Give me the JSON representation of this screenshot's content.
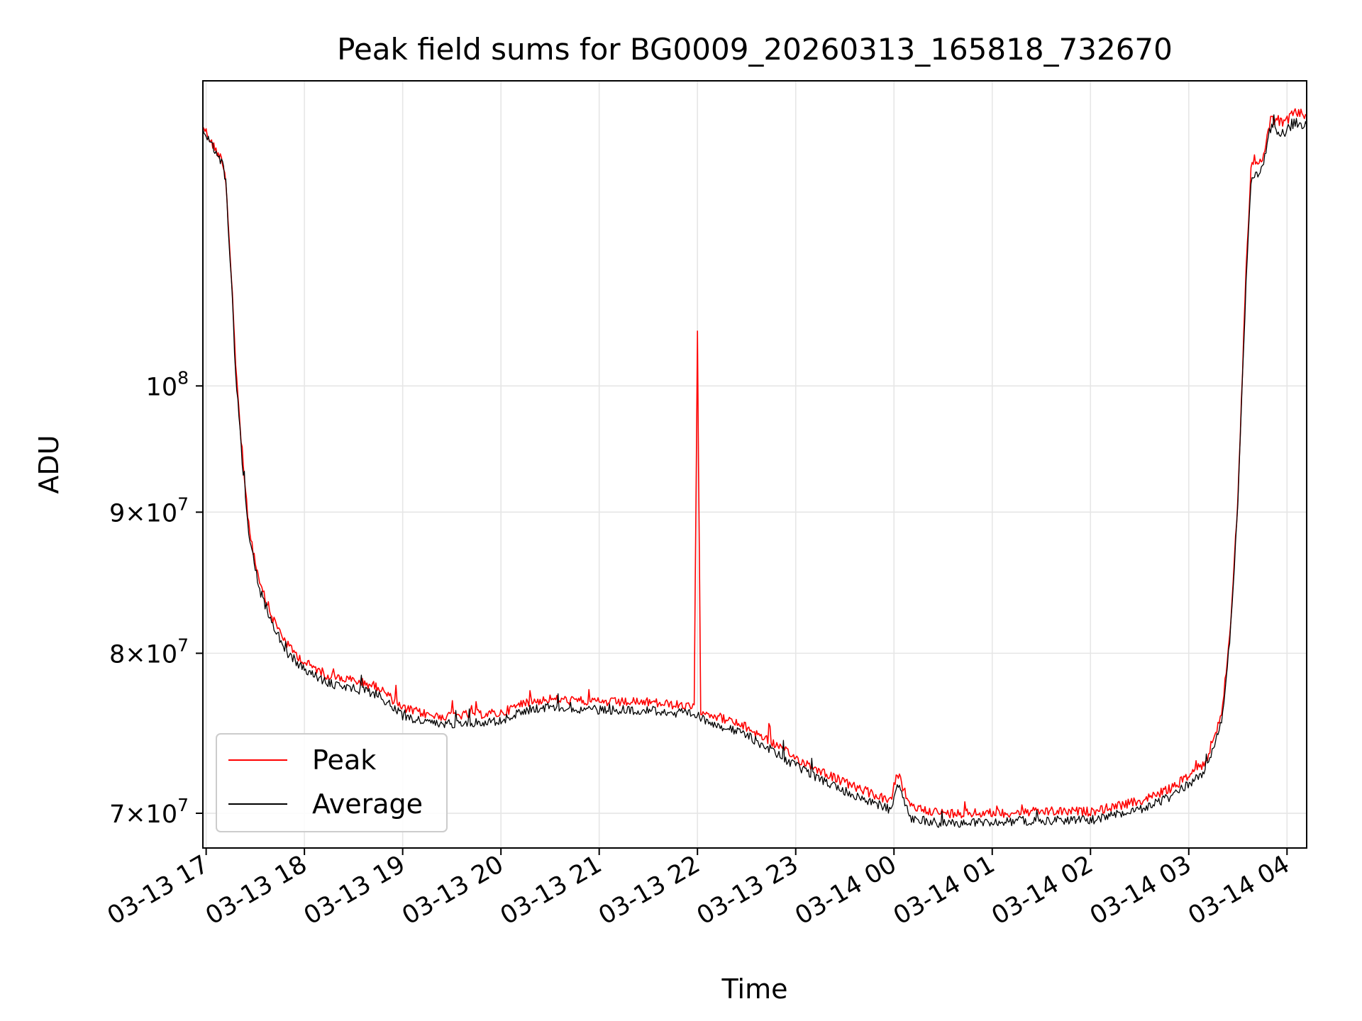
{
  "chart_data": {
    "type": "line",
    "title": "Peak field sums for BG0009_20260313_165818_732670",
    "xlabel": "Time",
    "ylabel": "ADU",
    "x_scale": "time",
    "y_scale": "log",
    "xlim": [
      "2026-03-13 16:58",
      "2026-03-14 04:12"
    ],
    "ylim": [
      68000000,
      129000000
    ],
    "x_ticks": [
      {
        "value": "2026-03-13 17:00",
        "label": "03-13 17"
      },
      {
        "value": "2026-03-13 18:00",
        "label": "03-13 18"
      },
      {
        "value": "2026-03-13 19:00",
        "label": "03-13 19"
      },
      {
        "value": "2026-03-13 20:00",
        "label": "03-13 20"
      },
      {
        "value": "2026-03-13 21:00",
        "label": "03-13 21"
      },
      {
        "value": "2026-03-13 22:00",
        "label": "03-13 22"
      },
      {
        "value": "2026-03-13 23:00",
        "label": "03-13 23"
      },
      {
        "value": "2026-03-14 00:00",
        "label": "03-14 00"
      },
      {
        "value": "2026-03-14 01:00",
        "label": "03-14 01"
      },
      {
        "value": "2026-03-14 02:00",
        "label": "03-14 02"
      },
      {
        "value": "2026-03-14 03:00",
        "label": "03-14 03"
      },
      {
        "value": "2026-03-14 04:00",
        "label": "03-14 04"
      }
    ],
    "y_ticks": [
      {
        "value": 70000000,
        "mant": "7",
        "exp": "7"
      },
      {
        "value": 80000000,
        "mant": "8",
        "exp": "7"
      },
      {
        "value": 90000000,
        "mant": "9",
        "exp": "7"
      },
      {
        "value": 100000000,
        "mant": "",
        "exp": "8"
      }
    ],
    "grid": true,
    "legend_position": "lower-left",
    "series": [
      {
        "name": "Peak",
        "color": "#ff0000",
        "points": [
          [
            "2026-03-13 16:58",
            124300000
          ],
          [
            "2026-03-13 17:04",
            122300000
          ],
          [
            "2026-03-13 17:10",
            120700000
          ],
          [
            "2026-03-13 17:12",
            118800000
          ],
          [
            "2026-03-13 17:16",
            108000000
          ],
          [
            "2026-03-13 17:18",
            101500000
          ],
          [
            "2026-03-13 17:22",
            94500000
          ],
          [
            "2026-03-13 17:26",
            89000000
          ],
          [
            "2026-03-13 17:32",
            85000000
          ],
          [
            "2026-03-13 17:40",
            82500000
          ],
          [
            "2026-03-13 17:50",
            80500000
          ],
          [
            "2026-03-13 18:00",
            79400000
          ],
          [
            "2026-03-13 18:15",
            78500000
          ],
          [
            "2026-03-13 18:30",
            78200000
          ],
          [
            "2026-03-13 18:45",
            77800000
          ],
          [
            "2026-03-13 19:00",
            76400000
          ],
          [
            "2026-03-13 19:20",
            75900000
          ],
          [
            "2026-03-13 19:40",
            76000000
          ],
          [
            "2026-03-13 20:00",
            76100000
          ],
          [
            "2026-03-13 20:15",
            76800000
          ],
          [
            "2026-03-13 20:30",
            77000000
          ],
          [
            "2026-03-13 21:00",
            76800000
          ],
          [
            "2026-03-13 21:30",
            76800000
          ],
          [
            "2026-03-13 21:58",
            76500000
          ],
          [
            "2026-03-13 22:00",
            104300000
          ],
          [
            "2026-03-13 22:02",
            76300000
          ],
          [
            "2026-03-13 22:30",
            75200000
          ],
          [
            "2026-03-13 22:45",
            74300000
          ],
          [
            "2026-03-13 23:00",
            73300000
          ],
          [
            "2026-03-13 23:30",
            71800000
          ],
          [
            "2026-03-13 23:58",
            70700000
          ],
          [
            "2026-03-14 00:02",
            72400000
          ],
          [
            "2026-03-14 00:10",
            70400000
          ],
          [
            "2026-03-14 00:30",
            70000000
          ],
          [
            "2026-03-14 01:00",
            70000000
          ],
          [
            "2026-03-14 01:30",
            70100000
          ],
          [
            "2026-03-14 02:00",
            70100000
          ],
          [
            "2026-03-14 02:30",
            70700000
          ],
          [
            "2026-03-14 02:50",
            71500000
          ],
          [
            "2026-03-14 03:10",
            73000000
          ],
          [
            "2026-03-14 03:20",
            76000000
          ],
          [
            "2026-03-14 03:25",
            81000000
          ],
          [
            "2026-03-14 03:30",
            91000000
          ],
          [
            "2026-03-14 03:35",
            110000000
          ],
          [
            "2026-03-14 03:38",
            120000000
          ],
          [
            "2026-03-14 03:45",
            120600000
          ],
          [
            "2026-03-14 03:50",
            125000000
          ],
          [
            "2026-03-14 03:58",
            124500000
          ],
          [
            "2026-03-14 04:05",
            125700000
          ],
          [
            "2026-03-14 04:12",
            125300000
          ]
        ]
      },
      {
        "name": "Average",
        "color": "#000000",
        "points": [
          [
            "2026-03-13 16:58",
            124000000
          ],
          [
            "2026-03-13 17:04",
            122000000
          ],
          [
            "2026-03-13 17:10",
            120400000
          ],
          [
            "2026-03-13 17:12",
            118500000
          ],
          [
            "2026-03-13 17:16",
            107500000
          ],
          [
            "2026-03-13 17:18",
            101000000
          ],
          [
            "2026-03-13 17:22",
            94000000
          ],
          [
            "2026-03-13 17:26",
            88600000
          ],
          [
            "2026-03-13 17:32",
            84600000
          ],
          [
            "2026-03-13 17:40",
            82000000
          ],
          [
            "2026-03-13 17:50",
            80000000
          ],
          [
            "2026-03-13 18:00",
            78900000
          ],
          [
            "2026-03-13 18:15",
            78000000
          ],
          [
            "2026-03-13 18:30",
            77700000
          ],
          [
            "2026-03-13 18:45",
            77300000
          ],
          [
            "2026-03-13 19:00",
            75900000
          ],
          [
            "2026-03-13 19:20",
            75400000
          ],
          [
            "2026-03-13 19:40",
            75500000
          ],
          [
            "2026-03-13 20:00",
            75600000
          ],
          [
            "2026-03-13 20:15",
            76300000
          ],
          [
            "2026-03-13 20:30",
            76500000
          ],
          [
            "2026-03-13 21:00",
            76300000
          ],
          [
            "2026-03-13 21:30",
            76300000
          ],
          [
            "2026-03-13 21:58",
            76000000
          ],
          [
            "2026-03-13 22:00",
            75900000
          ],
          [
            "2026-03-13 22:02",
            75800000
          ],
          [
            "2026-03-13 22:30",
            74700000
          ],
          [
            "2026-03-13 22:45",
            73800000
          ],
          [
            "2026-03-13 23:00",
            72800000
          ],
          [
            "2026-03-13 23:30",
            71300000
          ],
          [
            "2026-03-13 23:58",
            70200000
          ],
          [
            "2026-03-14 00:02",
            71900000
          ],
          [
            "2026-03-14 00:10",
            69700000
          ],
          [
            "2026-03-14 00:30",
            69400000
          ],
          [
            "2026-03-14 01:00",
            69500000
          ],
          [
            "2026-03-14 01:30",
            69600000
          ],
          [
            "2026-03-14 02:00",
            69600000
          ],
          [
            "2026-03-14 02:30",
            70200000
          ],
          [
            "2026-03-14 02:50",
            71000000
          ],
          [
            "2026-03-14 03:10",
            72500000
          ],
          [
            "2026-03-14 03:20",
            75500000
          ],
          [
            "2026-03-14 03:25",
            80500000
          ],
          [
            "2026-03-14 03:30",
            90500000
          ],
          [
            "2026-03-14 03:35",
            109000000
          ],
          [
            "2026-03-14 03:38",
            118800000
          ],
          [
            "2026-03-14 03:45",
            119800000
          ],
          [
            "2026-03-14 03:50",
            124000000
          ],
          [
            "2026-03-14 03:58",
            123500000
          ],
          [
            "2026-03-14 04:05",
            124600000
          ],
          [
            "2026-03-14 04:12",
            124300000
          ]
        ]
      }
    ]
  }
}
